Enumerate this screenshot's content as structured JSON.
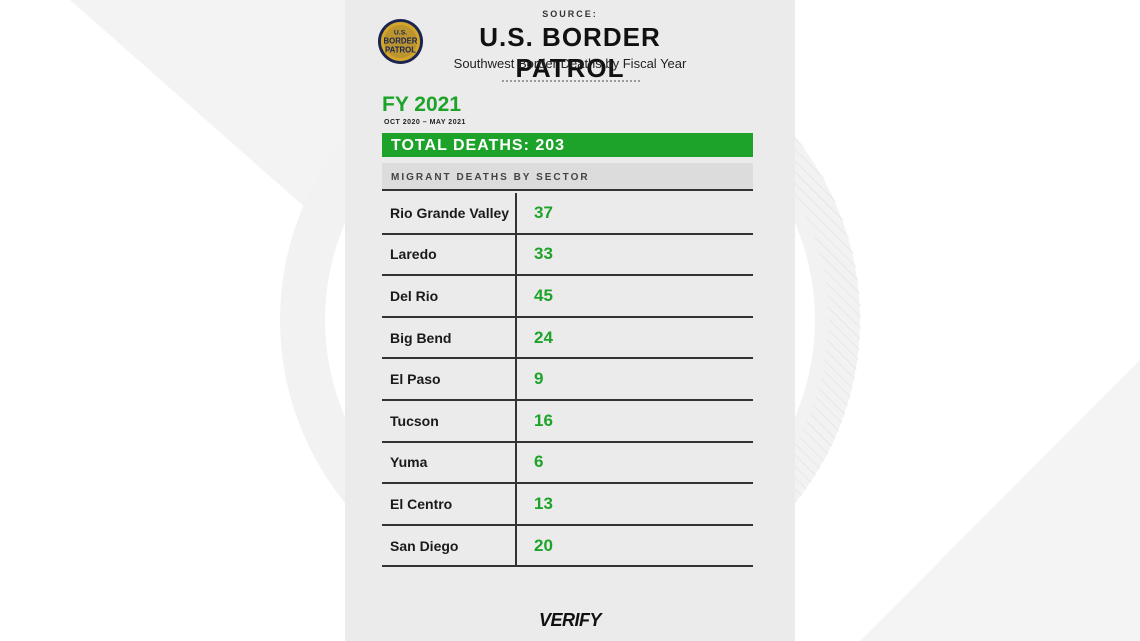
{
  "source": {
    "label": "SOURCE:",
    "agency": "U.S. BORDER PATROL",
    "subtitle": "Southwest Border Deaths by Fiscal Year",
    "logo_text": [
      "U.S.",
      "BORDER",
      "PATROL"
    ]
  },
  "fiscal_year": {
    "title": "FY 2021",
    "range": "OCT 2020 – MAY 2021"
  },
  "total": {
    "text": "TOTAL DEATHS: 203",
    "value": 203
  },
  "table": {
    "header": "MIGRANT DEATHS BY SECTOR",
    "rows": [
      {
        "sector": "Rio Grande Valley",
        "deaths": "37"
      },
      {
        "sector": "Laredo",
        "deaths": "33"
      },
      {
        "sector": "Del Rio",
        "deaths": "45"
      },
      {
        "sector": "Big Bend",
        "deaths": "24"
      },
      {
        "sector": "El Paso",
        "deaths": "9"
      },
      {
        "sector": "Tucson",
        "deaths": "16"
      },
      {
        "sector": "Yuma",
        "deaths": "6"
      },
      {
        "sector": "El Centro",
        "deaths": "13"
      },
      {
        "sector": "San Diego",
        "deaths": "20"
      }
    ]
  },
  "brand": "VERIFY",
  "colors": {
    "accent_green": "#1ea32a",
    "card_bg": "#ebebeb",
    "header_bg": "#dcdcdc",
    "logo_gold": "#d4a62a",
    "logo_navy": "#1b2550"
  },
  "chart_data": {
    "type": "table",
    "title": "FY 2021",
    "columns": [
      "Sector",
      "Deaths"
    ],
    "categories": [
      "Rio Grande Valley",
      "Laredo",
      "Del Rio",
      "Big Bend",
      "El Paso",
      "Tucson",
      "Yuma",
      "El Centro",
      "San Diego"
    ],
    "values": [
      37,
      33,
      45,
      24,
      9,
      16,
      6,
      13,
      20
    ]
  }
}
